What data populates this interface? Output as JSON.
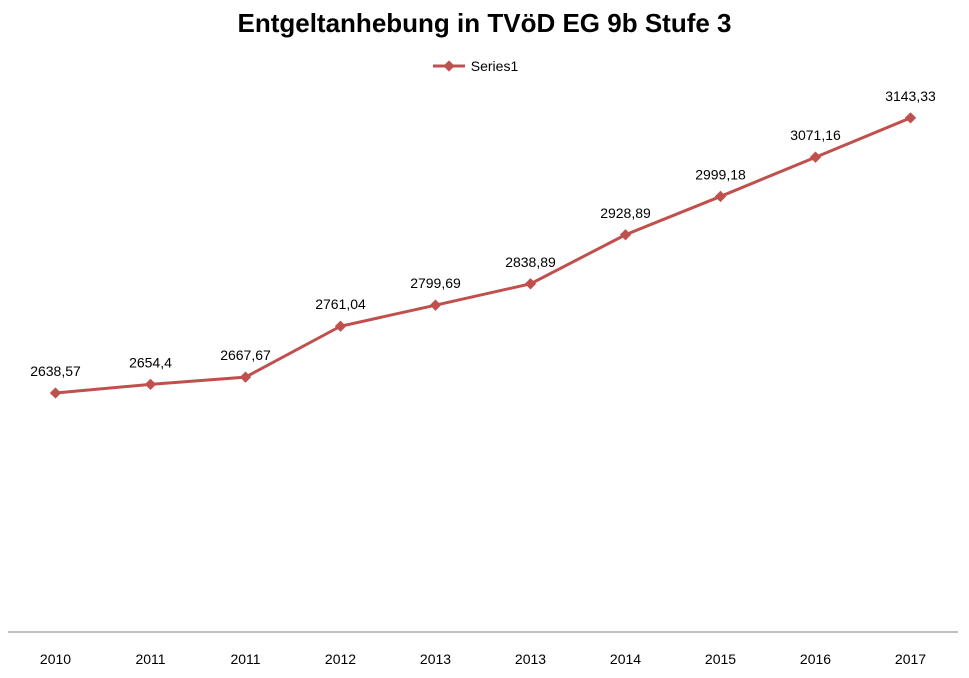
{
  "chart_data": {
    "type": "line",
    "title": "Entgeltanhebung in TVöD EG 9b Stufe 3",
    "categories": [
      "2010",
      "2011",
      "2011",
      "2012",
      "2013",
      "2013",
      "2014",
      "2015",
      "2016",
      "2017"
    ],
    "series": [
      {
        "name": "Series1",
        "values": [
          2638.57,
          2654.4,
          2667.67,
          2761.04,
          2799.69,
          2838.89,
          2928.89,
          2999.18,
          3071.16,
          3143.33
        ],
        "labels": [
          "2638,57",
          "2654,4",
          "2667,67",
          "2761,04",
          "2799,69",
          "2838,89",
          "2928,89",
          "2999,18",
          "3071,16",
          "3143,33"
        ],
        "color": "#C0504D"
      }
    ],
    "xlabel": "",
    "ylabel": "",
    "ylim": [
      2200,
      3200
    ],
    "grid": false,
    "legend_position": "top"
  }
}
